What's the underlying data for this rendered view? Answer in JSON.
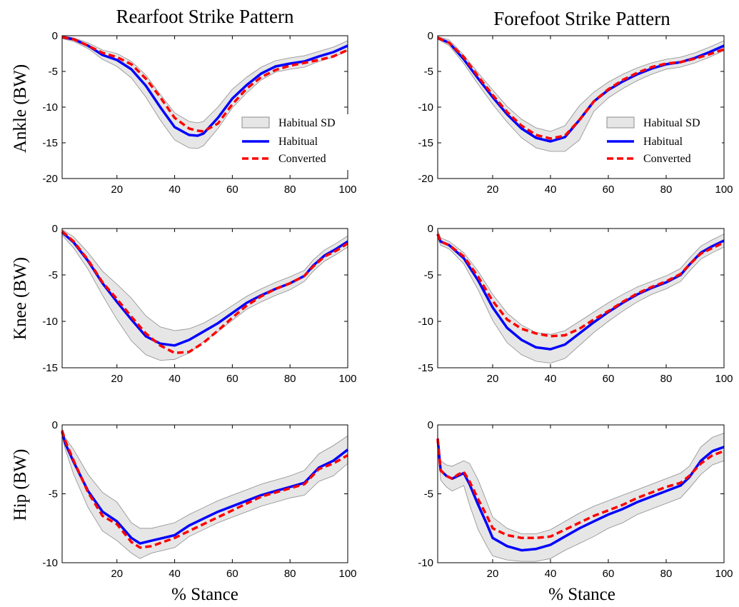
{
  "figure": {
    "column_titles": [
      "Rearfoot Strike Pattern",
      "Forefoot Strike Pattern"
    ],
    "row_labels": [
      "Ankle (BW)",
      "Knee (BW)",
      "Hip (BW)"
    ],
    "xlabel": "% Stance"
  },
  "colors": {
    "habitual": "#0000ff",
    "converted": "#ff0000",
    "sd_fill": "#e6e6e6",
    "sd_edge": "#8c8c8c"
  },
  "chart_data": [
    {
      "type": "line",
      "id": "ankle-rearfoot",
      "title": "Rearfoot Strike Pattern",
      "ylabel": "Ankle (BW)",
      "xlabel": "",
      "xlim": [
        1,
        100
      ],
      "ylim": [
        -20,
        0
      ],
      "xticks": [
        20,
        40,
        60,
        80,
        100
      ],
      "yticks": [
        0,
        -5,
        -10,
        -15,
        -20
      ],
      "legend": {
        "placement": "inside-right",
        "entries": [
          "Habitual SD",
          "Habitual",
          "Converted"
        ]
      },
      "x": [
        1,
        5,
        10,
        15,
        20,
        25,
        30,
        35,
        40,
        45,
        48,
        50,
        55,
        60,
        65,
        70,
        75,
        80,
        85,
        90,
        95,
        100
      ],
      "series": [
        {
          "name": "Habitual",
          "values": [
            -0.2,
            -0.5,
            -1.4,
            -2.7,
            -3.4,
            -4.7,
            -7.0,
            -10.0,
            -12.8,
            -13.9,
            -14.0,
            -13.7,
            -11.5,
            -8.8,
            -6.9,
            -5.3,
            -4.3,
            -3.9,
            -3.6,
            -2.9,
            -2.3,
            -1.4
          ]
        },
        {
          "name": "Converted",
          "values": [
            -0.2,
            -0.5,
            -1.4,
            -2.4,
            -3.0,
            -4.0,
            -6.0,
            -8.6,
            -11.5,
            -13.0,
            -13.3,
            -13.4,
            -12.3,
            -9.6,
            -7.4,
            -5.8,
            -4.8,
            -4.2,
            -3.8,
            -3.4,
            -2.9,
            -2.0
          ]
        },
        {
          "name": "Habitual SD",
          "upper": [
            0.0,
            -0.3,
            -1.0,
            -2.0,
            -2.5,
            -3.6,
            -5.5,
            -8.2,
            -10.8,
            -12.0,
            -12.2,
            -12.0,
            -10.0,
            -7.5,
            -5.8,
            -4.4,
            -3.5,
            -3.1,
            -2.8,
            -2.2,
            -1.6,
            -0.7
          ],
          "lower": [
            -0.4,
            -0.8,
            -1.8,
            -3.3,
            -4.3,
            -5.9,
            -8.6,
            -11.8,
            -14.6,
            -15.7,
            -15.8,
            -15.4,
            -13.0,
            -10.1,
            -8.0,
            -6.2,
            -5.1,
            -4.7,
            -4.4,
            -3.6,
            -3.0,
            -2.1
          ]
        }
      ]
    },
    {
      "type": "line",
      "id": "ankle-forefoot",
      "title": "Forefoot Strike Pattern",
      "ylabel": "",
      "xlabel": "",
      "xlim": [
        1,
        100
      ],
      "ylim": [
        -20,
        0
      ],
      "xticks": [
        20,
        40,
        60,
        80,
        100
      ],
      "yticks": [
        0,
        -5,
        -10,
        -15,
        -20
      ],
      "legend": {
        "placement": "inside-right",
        "entries": [
          "Habitual SD",
          "Habitual",
          "Converted"
        ]
      },
      "x": [
        1,
        5,
        10,
        15,
        20,
        25,
        30,
        35,
        40,
        45,
        50,
        55,
        60,
        65,
        70,
        75,
        80,
        85,
        90,
        95,
        100
      ],
      "series": [
        {
          "name": "Habitual",
          "values": [
            -0.3,
            -1.0,
            -3.3,
            -6.0,
            -8.6,
            -11.0,
            -13.0,
            -14.3,
            -14.8,
            -14.2,
            -11.8,
            -9.2,
            -7.6,
            -6.4,
            -5.4,
            -4.6,
            -4.0,
            -3.7,
            -3.1,
            -2.3,
            -1.4
          ]
        },
        {
          "name": "Converted",
          "values": [
            -0.3,
            -1.0,
            -3.0,
            -5.7,
            -8.3,
            -10.7,
            -12.6,
            -13.9,
            -14.4,
            -14.0,
            -11.8,
            -9.2,
            -7.5,
            -6.2,
            -5.2,
            -4.4,
            -3.9,
            -3.7,
            -3.2,
            -2.6,
            -1.9
          ]
        },
        {
          "name": "Habitual SD",
          "upper": [
            -0.1,
            -0.6,
            -2.7,
            -5.2,
            -7.6,
            -9.9,
            -11.7,
            -12.9,
            -13.4,
            -12.6,
            -9.8,
            -7.9,
            -6.5,
            -5.4,
            -4.5,
            -3.8,
            -3.3,
            -3.0,
            -2.4,
            -1.6,
            -0.7
          ],
          "lower": [
            -0.5,
            -1.4,
            -3.9,
            -6.8,
            -9.6,
            -12.1,
            -14.3,
            -15.7,
            -16.2,
            -16.2,
            -14.6,
            -10.6,
            -8.7,
            -7.4,
            -6.3,
            -5.4,
            -4.7,
            -4.4,
            -3.8,
            -3.0,
            -2.1
          ]
        }
      ]
    },
    {
      "type": "line",
      "id": "knee-rearfoot",
      "title": "",
      "ylabel": "Knee (BW)",
      "xlabel": "",
      "xlim": [
        1,
        100
      ],
      "ylim": [
        -15,
        0
      ],
      "xticks": [
        20,
        40,
        60,
        80,
        100
      ],
      "yticks": [
        0,
        -5,
        -10,
        -15
      ],
      "x": [
        1,
        5,
        10,
        15,
        20,
        25,
        30,
        35,
        40,
        45,
        50,
        55,
        60,
        65,
        70,
        75,
        80,
        85,
        88,
        92,
        96,
        100
      ],
      "series": [
        {
          "name": "Habitual",
          "values": [
            -0.4,
            -1.5,
            -3.5,
            -5.9,
            -7.9,
            -9.8,
            -11.6,
            -12.4,
            -12.6,
            -12.0,
            -11.1,
            -10.2,
            -9.1,
            -8.0,
            -7.2,
            -6.5,
            -5.9,
            -5.1,
            -4.0,
            -2.9,
            -2.2,
            -1.4
          ]
        },
        {
          "name": "Converted",
          "values": [
            -0.3,
            -1.4,
            -3.4,
            -5.8,
            -7.6,
            -9.5,
            -11.3,
            -12.6,
            -13.4,
            -13.3,
            -12.3,
            -11.0,
            -9.6,
            -8.3,
            -7.3,
            -6.5,
            -5.9,
            -5.1,
            -4.1,
            -3.0,
            -2.4,
            -1.6
          ]
        },
        {
          "name": "Habitual SD",
          "upper": [
            -0.1,
            -0.9,
            -2.6,
            -4.6,
            -6.0,
            -7.5,
            -9.4,
            -10.6,
            -11.0,
            -10.8,
            -10.2,
            -9.3,
            -8.3,
            -7.3,
            -6.5,
            -5.8,
            -5.2,
            -4.5,
            -3.4,
            -2.3,
            -1.6,
            -0.8
          ],
          "lower": [
            -0.7,
            -2.1,
            -4.4,
            -7.2,
            -9.8,
            -12.1,
            -13.6,
            -14.2,
            -14.1,
            -13.4,
            -12.2,
            -11.1,
            -9.9,
            -8.7,
            -7.9,
            -7.2,
            -6.6,
            -5.7,
            -4.6,
            -3.5,
            -2.8,
            -2.0
          ]
        }
      ]
    },
    {
      "type": "line",
      "id": "knee-forefoot",
      "title": "",
      "ylabel": "",
      "xlabel": "",
      "xlim": [
        1,
        100
      ],
      "ylim": [
        -15,
        0
      ],
      "xticks": [
        20,
        40,
        60,
        80,
        100
      ],
      "yticks": [
        0,
        -5,
        -10,
        -15
      ],
      "x": [
        1,
        2,
        5,
        10,
        15,
        20,
        25,
        30,
        35,
        40,
        45,
        50,
        55,
        60,
        65,
        70,
        75,
        80,
        85,
        88,
        92,
        96,
        100
      ],
      "series": [
        {
          "name": "Habitual",
          "values": [
            -0.6,
            -1.4,
            -1.8,
            -3.2,
            -5.6,
            -8.5,
            -10.7,
            -12.0,
            -12.8,
            -13.0,
            -12.5,
            -11.3,
            -10.1,
            -9.0,
            -8.0,
            -7.1,
            -6.4,
            -5.8,
            -5.0,
            -3.9,
            -2.6,
            -1.9,
            -1.3
          ]
        },
        {
          "name": "Converted",
          "values": [
            -0.6,
            -1.4,
            -1.8,
            -3.0,
            -5.2,
            -7.8,
            -9.8,
            -10.8,
            -11.3,
            -11.6,
            -11.5,
            -10.8,
            -9.8,
            -8.9,
            -7.9,
            -7.0,
            -6.3,
            -5.7,
            -4.9,
            -3.9,
            -2.7,
            -2.1,
            -1.5
          ]
        },
        {
          "name": "Habitual SD",
          "upper": [
            -0.2,
            -1.0,
            -1.4,
            -2.6,
            -4.6,
            -7.1,
            -9.1,
            -10.4,
            -11.2,
            -11.4,
            -11.0,
            -10.0,
            -9.0,
            -8.0,
            -7.1,
            -6.3,
            -5.7,
            -5.1,
            -4.3,
            -3.2,
            -1.9,
            -1.2,
            -0.6
          ],
          "lower": [
            -1.0,
            -1.8,
            -2.2,
            -3.8,
            -6.6,
            -9.9,
            -12.3,
            -13.6,
            -14.3,
            -14.5,
            -14.0,
            -12.6,
            -11.2,
            -10.0,
            -8.9,
            -7.9,
            -7.1,
            -6.5,
            -5.7,
            -4.6,
            -3.3,
            -2.6,
            -2.0
          ]
        }
      ]
    },
    {
      "type": "line",
      "id": "hip-rearfoot",
      "title": "",
      "ylabel": "Hip (BW)",
      "xlabel": "% Stance",
      "xlim": [
        1,
        100
      ],
      "ylim": [
        -10,
        0
      ],
      "xticks": [
        20,
        40,
        60,
        80,
        100
      ],
      "yticks": [
        0,
        -5,
        -10
      ],
      "x": [
        1,
        2,
        5,
        10,
        15,
        20,
        25,
        28,
        32,
        36,
        40,
        45,
        50,
        55,
        60,
        65,
        70,
        75,
        80,
        85,
        90,
        95,
        100
      ],
      "series": [
        {
          "name": "Habitual",
          "values": [
            -0.5,
            -1.3,
            -2.7,
            -4.8,
            -6.3,
            -7.0,
            -8.2,
            -8.6,
            -8.4,
            -8.2,
            -8.0,
            -7.3,
            -6.8,
            -6.3,
            -5.9,
            -5.5,
            -5.1,
            -4.8,
            -4.5,
            -4.2,
            -3.1,
            -2.6,
            -1.8
          ]
        },
        {
          "name": "Converted",
          "values": [
            -0.4,
            -1.1,
            -2.6,
            -4.9,
            -6.6,
            -7.2,
            -8.5,
            -8.9,
            -8.8,
            -8.5,
            -8.2,
            -7.7,
            -7.2,
            -6.7,
            -6.2,
            -5.7,
            -5.2,
            -4.9,
            -4.6,
            -4.3,
            -3.2,
            -2.8,
            -2.2
          ]
        },
        {
          "name": "Habitual SD",
          "upper": [
            -0.3,
            -0.9,
            -1.8,
            -3.6,
            -4.9,
            -5.6,
            -7.1,
            -7.5,
            -7.5,
            -7.3,
            -7.1,
            -6.5,
            -6.0,
            -5.5,
            -5.1,
            -4.7,
            -4.3,
            -4.0,
            -3.7,
            -3.3,
            -2.1,
            -1.5,
            -0.8
          ],
          "lower": [
            -0.7,
            -1.7,
            -3.6,
            -6.0,
            -7.7,
            -8.4,
            -9.3,
            -9.7,
            -9.3,
            -9.1,
            -8.9,
            -8.1,
            -7.6,
            -7.1,
            -6.7,
            -6.3,
            -5.9,
            -5.6,
            -5.3,
            -5.1,
            -4.1,
            -3.7,
            -2.8
          ]
        }
      ]
    },
    {
      "type": "line",
      "id": "hip-forefoot",
      "title": "",
      "ylabel": "",
      "xlabel": "% Stance",
      "xlim": [
        1,
        100
      ],
      "ylim": [
        -10,
        0
      ],
      "xticks": [
        20,
        40,
        60,
        80,
        100
      ],
      "yticks": [
        0,
        -5,
        -10
      ],
      "x": [
        1,
        2,
        4,
        6,
        8,
        10,
        12,
        15,
        18,
        20,
        25,
        30,
        35,
        40,
        45,
        50,
        55,
        60,
        65,
        70,
        75,
        80,
        85,
        88,
        92,
        96,
        100
      ],
      "series": [
        {
          "name": "Habitual",
          "values": [
            -1.0,
            -3.3,
            -3.7,
            -3.9,
            -3.7,
            -3.5,
            -4.3,
            -5.8,
            -7.2,
            -8.2,
            -8.8,
            -9.1,
            -9.0,
            -8.7,
            -8.1,
            -7.5,
            -7.0,
            -6.5,
            -6.1,
            -5.6,
            -5.2,
            -4.8,
            -4.4,
            -3.8,
            -2.6,
            -1.9,
            -1.6
          ]
        },
        {
          "name": "Converted",
          "values": [
            -1.0,
            -3.3,
            -3.7,
            -3.9,
            -3.6,
            -3.4,
            -4.1,
            -5.4,
            -6.6,
            -7.5,
            -8.0,
            -8.2,
            -8.2,
            -8.1,
            -7.6,
            -7.1,
            -6.6,
            -6.2,
            -5.8,
            -5.3,
            -4.9,
            -4.5,
            -4.2,
            -3.7,
            -2.8,
            -2.2,
            -1.9
          ]
        },
        {
          "name": "Habitual SD",
          "upper": [
            -0.8,
            -2.6,
            -2.9,
            -3.0,
            -2.8,
            -2.6,
            -2.8,
            -4.0,
            -5.6,
            -6.7,
            -7.5,
            -7.9,
            -7.9,
            -7.6,
            -7.0,
            -6.4,
            -5.9,
            -5.5,
            -5.1,
            -4.7,
            -4.3,
            -3.9,
            -3.5,
            -3.0,
            -1.6,
            -0.9,
            -0.6
          ],
          "lower": [
            -1.2,
            -4.0,
            -4.5,
            -4.8,
            -4.6,
            -4.4,
            -5.8,
            -7.6,
            -8.8,
            -9.5,
            -9.8,
            -9.9,
            -9.9,
            -9.7,
            -9.1,
            -8.6,
            -8.1,
            -7.5,
            -7.1,
            -6.5,
            -6.1,
            -5.7,
            -5.3,
            -4.6,
            -3.6,
            -2.9,
            -2.6
          ]
        }
      ]
    }
  ]
}
